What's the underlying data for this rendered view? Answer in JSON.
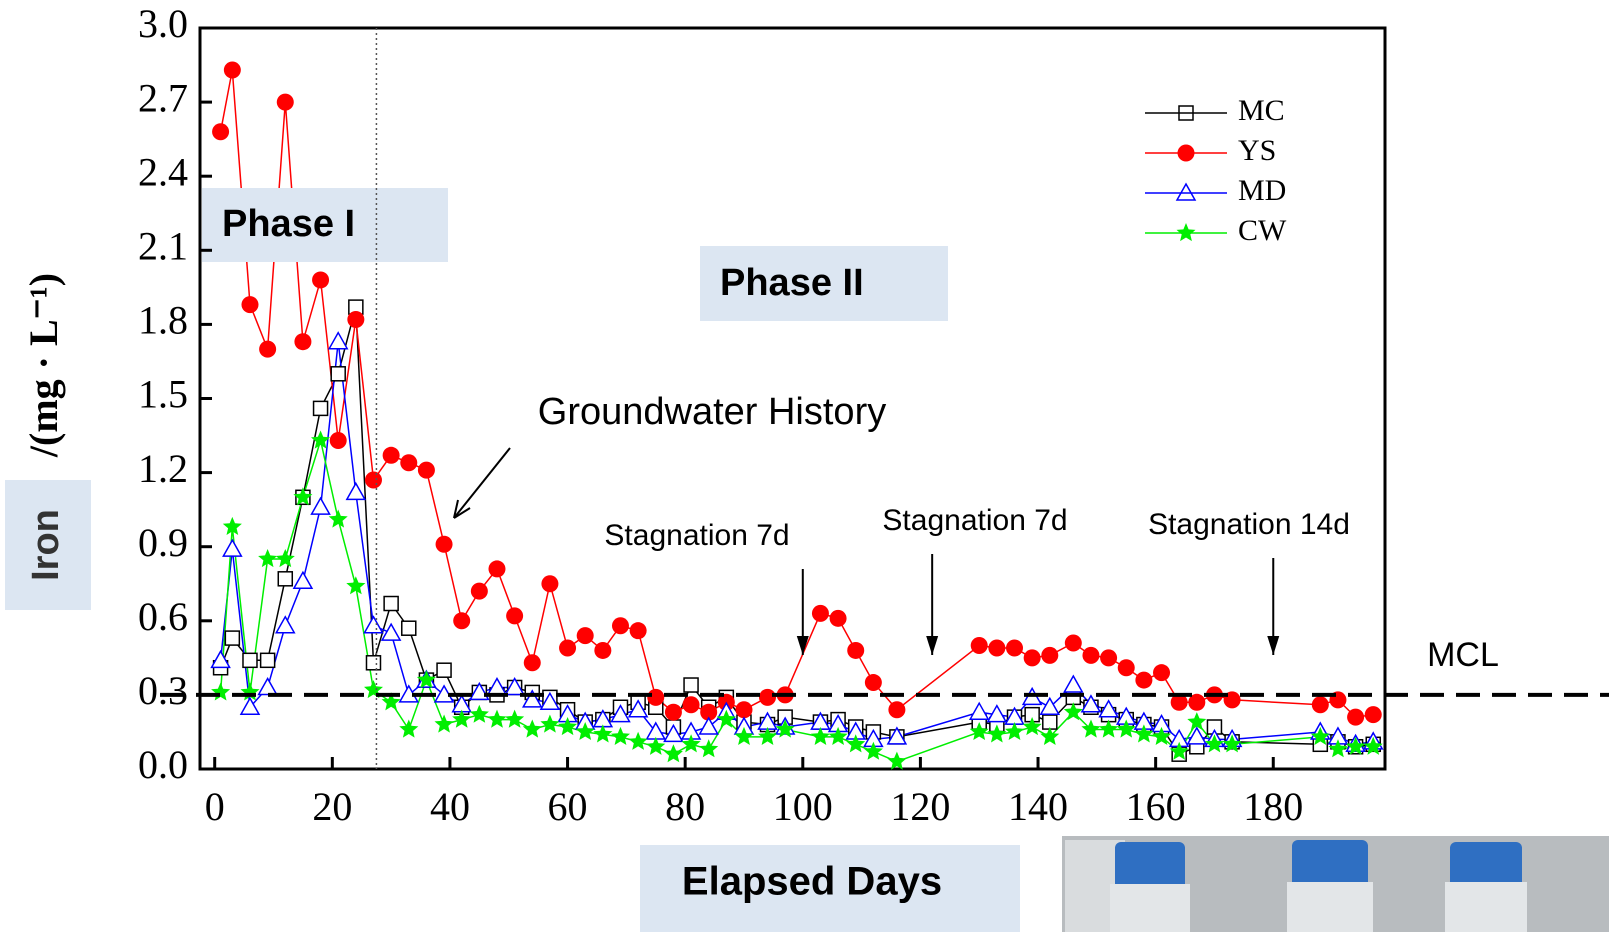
{
  "chart_data": {
    "type": "line",
    "ylabel": "Iron",
    "ylabel_unit": "/(mg · L⁻¹)",
    "xlabel": "Elapsed Days",
    "xlim": [
      -2.5,
      199
    ],
    "ylim": [
      0,
      3.0
    ],
    "xticks": [
      0,
      20,
      40,
      60,
      80,
      100,
      120,
      140,
      160,
      180
    ],
    "yticks": [
      {
        "value": 0,
        "label": "0.0"
      },
      0.3,
      0.6,
      0.9,
      1.2,
      1.5,
      1.8,
      2.1,
      2.4,
      2.7,
      {
        "value": 3,
        "label": "3.0"
      }
    ],
    "legend": "upper right",
    "series": [
      {
        "name": "MC",
        "color": "#000000",
        "marker": "square",
        "x": [
          1,
          3,
          6,
          9,
          12,
          15,
          18,
          21,
          24,
          27,
          30,
          33,
          36,
          39,
          42,
          45,
          48,
          51,
          54,
          57,
          60,
          63,
          66,
          69,
          72,
          75,
          78,
          81,
          84,
          87,
          90,
          94,
          97,
          103,
          106,
          109,
          112,
          116,
          130,
          133,
          136,
          139,
          142,
          146,
          149,
          152,
          155,
          158,
          161,
          164,
          167,
          170,
          173,
          188,
          191,
          194,
          197
        ],
        "values": [
          0.41,
          0.53,
          0.44,
          0.44,
          0.77,
          1.1,
          1.46,
          1.6,
          1.87,
          0.43,
          0.67,
          0.57,
          0.36,
          0.4,
          0.25,
          0.31,
          0.3,
          0.33,
          0.31,
          0.29,
          0.24,
          0.19,
          0.2,
          0.25,
          0.27,
          0.25,
          0.17,
          0.34,
          0.25,
          0.29,
          0.19,
          0.18,
          0.21,
          0.19,
          0.2,
          0.17,
          0.15,
          0.13,
          0.19,
          0.18,
          0.21,
          0.22,
          0.19,
          0.29,
          0.25,
          0.22,
          0.2,
          0.18,
          0.17,
          0.06,
          0.09,
          0.17,
          0.11,
          0.1,
          0.11,
          0.09,
          0.1
        ]
      },
      {
        "name": "YS",
        "color": "#ff0000",
        "marker": "circle",
        "x": [
          1,
          3,
          6,
          9,
          12,
          15,
          18,
          21,
          24,
          27,
          30,
          33,
          36,
          39,
          42,
          45,
          48,
          51,
          54,
          57,
          60,
          63,
          66,
          69,
          72,
          75,
          78,
          81,
          84,
          87,
          90,
          94,
          97,
          103,
          106,
          109,
          112,
          116,
          130,
          133,
          136,
          139,
          142,
          146,
          149,
          152,
          155,
          158,
          161,
          164,
          167,
          170,
          173,
          188,
          191,
          194,
          197
        ],
        "values": [
          2.58,
          2.83,
          1.88,
          1.7,
          2.7,
          1.73,
          1.98,
          1.33,
          1.82,
          1.17,
          1.27,
          1.24,
          1.21,
          0.91,
          0.6,
          0.72,
          0.81,
          0.62,
          0.43,
          0.75,
          0.49,
          0.54,
          0.48,
          0.58,
          0.56,
          0.29,
          0.23,
          0.26,
          0.23,
          0.27,
          0.24,
          0.29,
          0.3,
          0.63,
          0.61,
          0.48,
          0.35,
          0.24,
          0.5,
          0.49,
          0.49,
          0.45,
          0.46,
          0.51,
          0.46,
          0.45,
          0.41,
          0.36,
          0.39,
          0.27,
          0.27,
          0.3,
          0.28,
          0.26,
          0.28,
          0.21,
          0.22
        ]
      },
      {
        "name": "MD",
        "color": "#0000ff",
        "marker": "triangle",
        "x": [
          1,
          3,
          6,
          9,
          12,
          15,
          18,
          21,
          24,
          27,
          30,
          33,
          36,
          39,
          42,
          45,
          48,
          51,
          54,
          57,
          60,
          63,
          66,
          69,
          72,
          75,
          78,
          81,
          84,
          87,
          90,
          94,
          97,
          103,
          106,
          109,
          112,
          116,
          130,
          133,
          136,
          139,
          142,
          146,
          149,
          152,
          155,
          158,
          161,
          164,
          167,
          170,
          173,
          188,
          191,
          194,
          197
        ],
        "values": [
          0.44,
          0.89,
          0.25,
          0.33,
          0.58,
          0.76,
          1.06,
          1.73,
          1.12,
          0.58,
          0.55,
          0.3,
          0.36,
          0.3,
          0.26,
          0.31,
          0.33,
          0.33,
          0.28,
          0.27,
          0.22,
          0.19,
          0.2,
          0.22,
          0.24,
          0.15,
          0.14,
          0.15,
          0.17,
          0.23,
          0.17,
          0.19,
          0.17,
          0.19,
          0.18,
          0.15,
          0.12,
          0.13,
          0.23,
          0.22,
          0.21,
          0.29,
          0.25,
          0.34,
          0.26,
          0.24,
          0.21,
          0.19,
          0.18,
          0.12,
          0.13,
          0.12,
          0.12,
          0.15,
          0.13,
          0.1,
          0.11
        ]
      },
      {
        "name": "CW",
        "color": "#00ee00",
        "marker": "star",
        "x": [
          1,
          3,
          6,
          9,
          12,
          15,
          18,
          21,
          24,
          27,
          30,
          33,
          36,
          39,
          42,
          45,
          48,
          51,
          54,
          57,
          60,
          63,
          66,
          69,
          72,
          75,
          78,
          81,
          84,
          87,
          90,
          94,
          97,
          103,
          106,
          109,
          112,
          116,
          130,
          133,
          136,
          139,
          142,
          146,
          149,
          152,
          155,
          158,
          161,
          164,
          167,
          170,
          173,
          188,
          191,
          194,
          197
        ],
        "values": [
          0.31,
          0.98,
          0.31,
          0.85,
          0.85,
          1.1,
          1.33,
          1.01,
          0.74,
          0.32,
          0.27,
          0.16,
          0.36,
          0.18,
          0.2,
          0.22,
          0.2,
          0.2,
          0.16,
          0.18,
          0.17,
          0.15,
          0.14,
          0.13,
          0.11,
          0.09,
          0.06,
          0.1,
          0.08,
          0.2,
          0.13,
          0.13,
          0.16,
          0.13,
          0.13,
          0.1,
          0.07,
          0.03,
          0.15,
          0.14,
          0.15,
          0.17,
          0.13,
          0.23,
          0.16,
          0.16,
          0.16,
          0.14,
          0.13,
          0.07,
          0.19,
          0.1,
          0.1,
          0.13,
          0.08,
          0.09,
          0.09
        ]
      }
    ],
    "phase_divider": 27.5,
    "phases": [
      "Phase I",
      "Phase II"
    ],
    "groundwater_label": "Groundwater History",
    "mcl": {
      "label": "MCL",
      "value": 0.3
    },
    "stagnations": [
      {
        "label": "Stagnation 7d",
        "x": 100
      },
      {
        "label": "Stagnation 7d",
        "x": 122
      },
      {
        "label": "Stagnation 14d",
        "x": 180
      }
    ]
  }
}
